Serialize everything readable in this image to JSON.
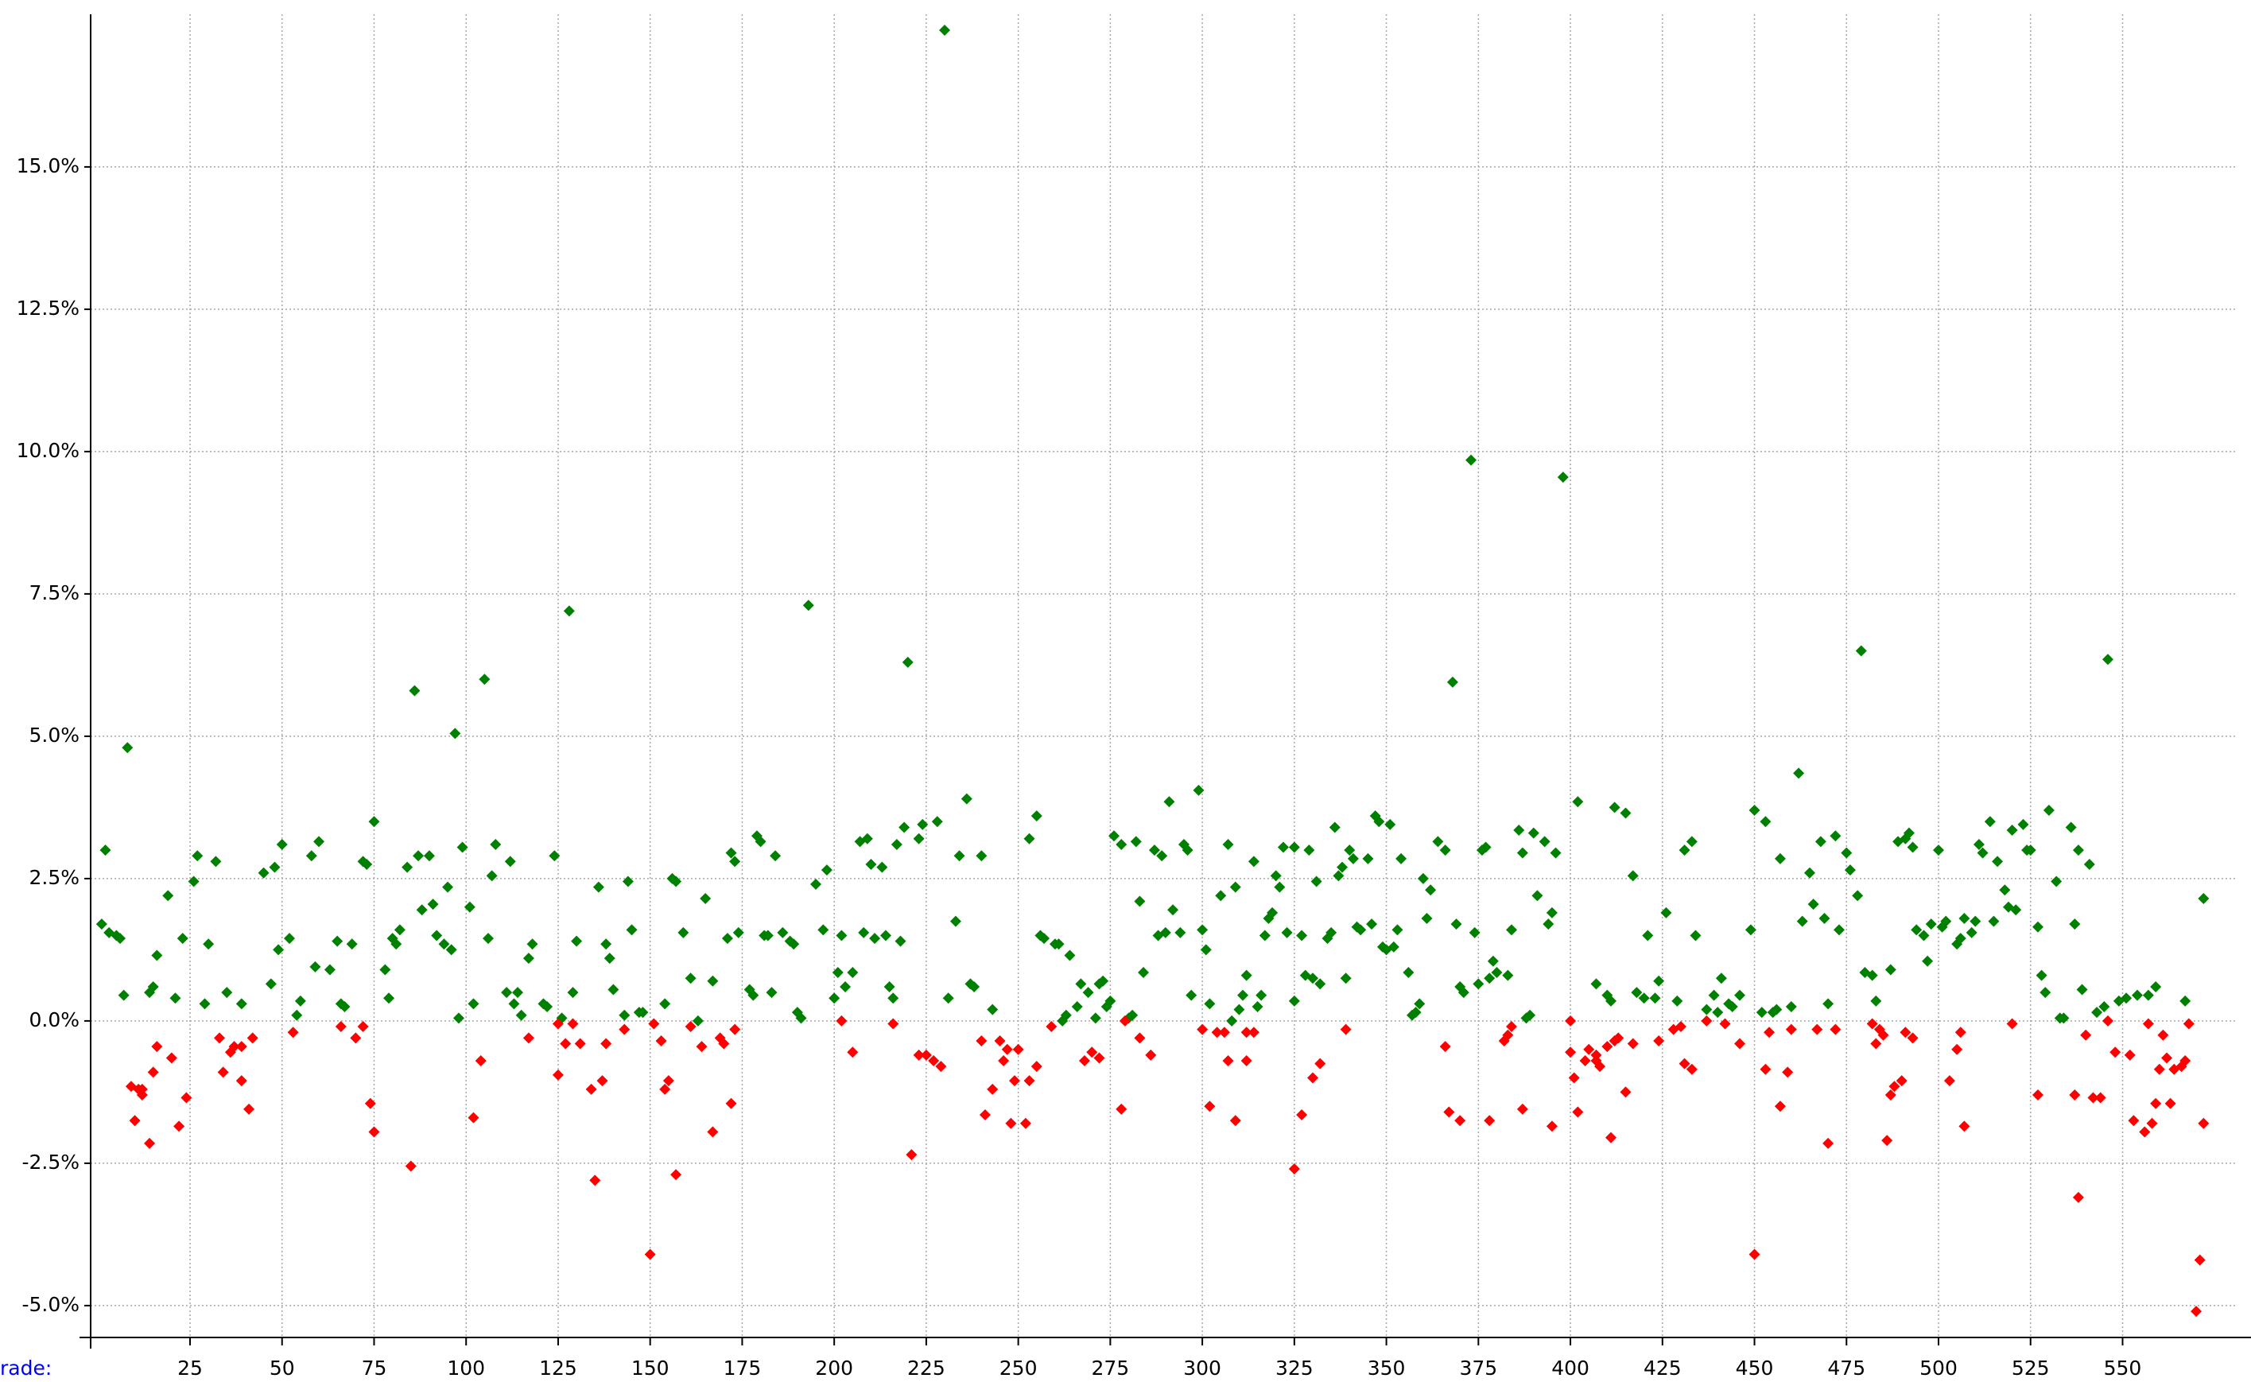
{
  "chart_data": {
    "type": "scatter",
    "x_label": "rade:",
    "xlim": [
      -2,
      581
    ],
    "ylim": [
      -5.56,
      17.68
    ],
    "xticks": [
      25,
      50,
      75,
      100,
      125,
      150,
      175,
      200,
      225,
      250,
      275,
      300,
      325,
      350,
      375,
      400,
      425,
      450,
      475,
      500,
      525,
      550
    ],
    "yticks": [
      {
        "value": -5,
        "label": "-5.0%"
      },
      {
        "value": -2.5,
        "label": "-2.5%"
      },
      {
        "value": 0,
        "label": "0.0%"
      },
      {
        "value": 2.5,
        "label": "2.5%"
      },
      {
        "value": 5,
        "label": "5.0%"
      },
      {
        "value": 7.5,
        "label": "7.5%"
      },
      {
        "value": 10,
        "label": "10.0%"
      },
      {
        "value": 12.5,
        "label": "12.5%"
      },
      {
        "value": 15,
        "label": "15.0%"
      }
    ],
    "grid": true,
    "series": [
      {
        "color": "#008000",
        "x": [
          1,
          2,
          3,
          5,
          6,
          7,
          8,
          14,
          15,
          16,
          19,
          21,
          23,
          26,
          27,
          29,
          30,
          32,
          35,
          39,
          45,
          47,
          48,
          49,
          50,
          52,
          54,
          55,
          58,
          59,
          60,
          63,
          65,
          66,
          67,
          69,
          72,
          73,
          75,
          78,
          79,
          80,
          81,
          82,
          84,
          86,
          87,
          88,
          90,
          91,
          92,
          94,
          95,
          96,
          97,
          98,
          99,
          101,
          102,
          105,
          106,
          107,
          108,
          111,
          112,
          113,
          114,
          115,
          117,
          118,
          121,
          122,
          124,
          126,
          128,
          129,
          130,
          136,
          138,
          139,
          140,
          143,
          144,
          145,
          147,
          148,
          154,
          156,
          157,
          159,
          161,
          163,
          165,
          167,
          171,
          172,
          173,
          174,
          177,
          178,
          179,
          180,
          181,
          182,
          183,
          184,
          186,
          188,
          189,
          190,
          191,
          195,
          193,
          197,
          198,
          200,
          201,
          202,
          203,
          205,
          207,
          208,
          209,
          210,
          211,
          213,
          214,
          215,
          216,
          217,
          218,
          219,
          220,
          223,
          224,
          228,
          230,
          231,
          233,
          234,
          236,
          237,
          238,
          240,
          243,
          253,
          255,
          256,
          257,
          260,
          261,
          262,
          263,
          264,
          266,
          267,
          269,
          271,
          272,
          273,
          274,
          275,
          276,
          278,
          280,
          281,
          282,
          283,
          284,
          287,
          288,
          289,
          290,
          291,
          292,
          294,
          295,
          296,
          297,
          299,
          300,
          301,
          302,
          305,
          307,
          308,
          309,
          310,
          311,
          312,
          314,
          315,
          316,
          317,
          318,
          319,
          320,
          321,
          322,
          325,
          323,
          325,
          327,
          328,
          329,
          330,
          331,
          332,
          334,
          335,
          336,
          337,
          338,
          339,
          340,
          341,
          342,
          343,
          345,
          346,
          347,
          348,
          349,
          350,
          351,
          352,
          353,
          354,
          356,
          357,
          358,
          359,
          360,
          361,
          362,
          364,
          366,
          368,
          369,
          370,
          371,
          373,
          374,
          375,
          376,
          377,
          378,
          379,
          380,
          383,
          384,
          386,
          387,
          388,
          389,
          390,
          391,
          393,
          394,
          395,
          396,
          398,
          402,
          407,
          410,
          411,
          412,
          415,
          417,
          418,
          420,
          421,
          423,
          424,
          426,
          429,
          431,
          433,
          434,
          437,
          439,
          440,
          441,
          443,
          444,
          446,
          449,
          450,
          452,
          453,
          455,
          456,
          457,
          460,
          462,
          463,
          465,
          466,
          468,
          469,
          470,
          472,
          473,
          475,
          476,
          478,
          479,
          480,
          482,
          483,
          487,
          489,
          491,
          492,
          493,
          494,
          496,
          497,
          498,
          500,
          501,
          502,
          505,
          506,
          507,
          509,
          510,
          511,
          512,
          514,
          515,
          516,
          518,
          519,
          520,
          521,
          523,
          524,
          525,
          527,
          528,
          529,
          530,
          532,
          533,
          534,
          536,
          537,
          538,
          539,
          541,
          543,
          545,
          546,
          549,
          551,
          554,
          557,
          559,
          567,
          572
        ],
        "values": [
          1.7,
          3.0,
          1.55,
          1.5,
          1.45,
          0.45,
          4.8,
          0.5,
          0.6,
          1.15,
          2.2,
          0.4,
          1.45,
          2.45,
          2.9,
          0.3,
          1.35,
          2.8,
          0.5,
          0.3,
          2.6,
          0.65,
          2.7,
          1.25,
          3.1,
          1.45,
          0.1,
          0.35,
          2.9,
          0.95,
          3.15,
          0.9,
          1.4,
          0.3,
          0.25,
          1.35,
          2.8,
          2.75,
          3.5,
          0.9,
          0.4,
          1.45,
          1.35,
          1.6,
          2.7,
          5.8,
          2.9,
          1.95,
          2.9,
          2.05,
          1.5,
          1.35,
          2.35,
          1.25,
          5.05,
          0.05,
          3.05,
          2.0,
          0.3,
          6.0,
          1.45,
          2.55,
          3.1,
          0.5,
          2.8,
          0.3,
          0.5,
          0.1,
          1.1,
          1.35,
          0.3,
          0.25,
          2.9,
          0.05,
          7.2,
          0.5,
          1.4,
          2.35,
          1.35,
          1.1,
          0.55,
          0.1,
          2.45,
          1.6,
          0.15,
          0.15,
          0.3,
          2.5,
          2.45,
          1.55,
          0.75,
          0.0,
          2.15,
          0.7,
          1.45,
          2.95,
          2.8,
          1.55,
          0.55,
          0.45,
          3.25,
          3.15,
          1.5,
          1.5,
          0.5,
          2.9,
          1.55,
          1.4,
          1.35,
          0.15,
          0.05,
          2.4,
          7.3,
          1.6,
          2.65,
          0.4,
          0.85,
          1.5,
          0.6,
          0.85,
          3.15,
          1.55,
          3.2,
          2.75,
          1.45,
          2.7,
          1.5,
          0.6,
          0.4,
          3.1,
          1.4,
          3.4,
          6.3,
          3.2,
          3.45,
          3.5,
          17.4,
          0.4,
          1.75,
          2.9,
          3.9,
          0.65,
          0.6,
          2.9,
          0.2,
          3.2,
          3.6,
          1.5,
          1.45,
          1.35,
          1.35,
          0.0,
          0.1,
          1.15,
          0.25,
          0.65,
          0.5,
          0.05,
          0.65,
          0.7,
          0.25,
          0.35,
          3.25,
          3.1,
          0.05,
          0.1,
          3.15,
          2.1,
          0.85,
          3.0,
          1.5,
          2.9,
          1.55,
          3.85,
          1.95,
          1.55,
          3.1,
          3.0,
          0.45,
          4.05,
          1.6,
          1.25,
          0.3,
          2.2,
          3.1,
          0.0,
          2.35,
          0.2,
          0.45,
          0.8,
          2.8,
          0.25,
          0.45,
          1.5,
          1.8,
          1.9,
          2.55,
          2.35,
          3.05,
          3.05,
          1.55,
          0.35,
          1.5,
          0.8,
          3.0,
          0.75,
          2.45,
          0.65,
          1.45,
          1.55,
          3.4,
          2.55,
          2.7,
          0.75,
          3.0,
          2.85,
          1.65,
          1.6,
          2.85,
          1.7,
          3.6,
          3.5,
          1.3,
          1.25,
          3.45,
          1.3,
          1.6,
          2.85,
          0.85,
          0.1,
          0.15,
          0.3,
          2.5,
          1.8,
          2.3,
          3.15,
          3.0,
          5.95,
          1.7,
          0.6,
          0.5,
          9.85,
          1.55,
          0.65,
          3.0,
          3.05,
          0.75,
          1.05,
          0.85,
          0.8,
          1.6,
          3.35,
          2.95,
          0.05,
          0.1,
          3.3,
          2.2,
          3.15,
          1.7,
          1.9,
          2.95,
          9.55,
          3.85,
          0.65,
          0.45,
          0.35,
          3.75,
          3.65,
          2.55,
          0.5,
          0.4,
          1.5,
          0.4,
          0.7,
          1.9,
          0.35,
          3.0,
          3.15,
          1.5,
          0.2,
          0.45,
          0.15,
          0.75,
          0.3,
          0.25,
          0.45,
          1.6,
          3.7,
          0.15,
          3.5,
          0.15,
          0.2,
          2.85,
          0.25,
          4.35,
          1.75,
          2.6,
          2.05,
          3.15,
          1.8,
          0.3,
          3.25,
          1.6,
          2.95,
          2.65,
          2.2,
          6.5,
          0.85,
          0.8,
          0.35,
          0.9,
          3.15,
          3.2,
          3.3,
          3.05,
          1.6,
          1.5,
          1.05,
          1.7,
          3.0,
          1.65,
          1.75,
          1.35,
          1.45,
          1.8,
          1.55,
          1.75,
          3.1,
          2.95,
          3.5,
          1.75,
          2.8,
          2.3,
          2.0,
          3.35,
          1.95,
          3.45,
          3.0,
          3.0,
          1.65,
          0.8,
          0.5,
          3.7,
          2.45,
          0.05,
          0.05,
          3.4,
          1.7,
          3.0,
          0.55,
          2.75,
          0.15,
          0.25,
          6.35,
          0.35,
          0.4,
          0.45,
          0.45,
          0.6,
          0.35,
          2.15
        ]
      },
      {
        "color": "#ff0000",
        "x": [
          9,
          10,
          11,
          12,
          12,
          14,
          15,
          16,
          20,
          22,
          24,
          33,
          34,
          36,
          37,
          39,
          39,
          41,
          42,
          53,
          66,
          70,
          72,
          74,
          75,
          85,
          102,
          104,
          117,
          125,
          125,
          127,
          129,
          131,
          134,
          135,
          137,
          138,
          143,
          150,
          151,
          153,
          154,
          155,
          157,
          161,
          164,
          167,
          169,
          170,
          172,
          173,
          202,
          205,
          216,
          221,
          223,
          225,
          227,
          229,
          240,
          241,
          243,
          245,
          246,
          247,
          248,
          249,
          250,
          252,
          253,
          255,
          259,
          268,
          270,
          272,
          278,
          279,
          283,
          286,
          300,
          302,
          304,
          306,
          307,
          309,
          312,
          312,
          314,
          325,
          327,
          330,
          332,
          339,
          366,
          367,
          370,
          378,
          382,
          383,
          384,
          387,
          395,
          400,
          400,
          401,
          402,
          404,
          405,
          407,
          407,
          408,
          410,
          411,
          412,
          413,
          415,
          417,
          424,
          428,
          430,
          431,
          433,
          437,
          442,
          446,
          450,
          453,
          454,
          457,
          459,
          460,
          467,
          470,
          472,
          482,
          483,
          484,
          485,
          486,
          487,
          488,
          490,
          491,
          493,
          503,
          505,
          506,
          507,
          520,
          527,
          537,
          538,
          540,
          542,
          544,
          546,
          548,
          552,
          553,
          556,
          557,
          558,
          559,
          560,
          561,
          562,
          563,
          564,
          566,
          567,
          568,
          570,
          571,
          572
        ],
        "values": [
          -1.15,
          -1.75,
          -1.2,
          -1.3,
          -1.2,
          -2.15,
          -0.9,
          -0.45,
          -0.65,
          -1.85,
          -1.35,
          -0.3,
          -0.9,
          -0.55,
          -0.45,
          -0.45,
          -1.05,
          -1.55,
          -0.3,
          -0.2,
          -0.1,
          -0.3,
          -0.1,
          -1.45,
          -1.95,
          -2.55,
          -1.7,
          -0.7,
          -0.3,
          -0.05,
          -0.95,
          -0.4,
          -0.05,
          -0.4,
          -1.2,
          -2.8,
          -1.05,
          -0.4,
          -0.15,
          -4.1,
          -0.05,
          -0.35,
          -1.2,
          -1.05,
          -2.7,
          -0.1,
          -0.45,
          -1.95,
          -0.3,
          -0.4,
          -1.45,
          -0.15,
          0,
          -0.55,
          -0.05,
          -2.35,
          -0.6,
          -0.6,
          -0.7,
          -0.8,
          -0.35,
          -1.65,
          -1.2,
          -0.35,
          -0.7,
          -0.5,
          -1.8,
          -1.05,
          -0.5,
          -1.8,
          -1.05,
          -0.8,
          -0.1,
          -0.7,
          -0.55,
          -0.65,
          -1.55,
          0,
          -0.3,
          -0.6,
          -0.15,
          -1.5,
          -0.2,
          -0.2,
          -0.7,
          -1.75,
          -0.7,
          -0.2,
          -0.2,
          -2.6,
          -1.65,
          -1.0,
          -0.75,
          -0.15,
          -0.45,
          -1.6,
          -1.75,
          -1.75,
          -0.35,
          -0.25,
          -0.1,
          -1.55,
          -1.85,
          0,
          -0.55,
          -1.0,
          -1.6,
          -0.7,
          -0.5,
          -0.6,
          -0.7,
          -0.8,
          -0.45,
          -2.05,
          -0.35,
          -0.3,
          -1.25,
          -0.4,
          -0.35,
          -0.15,
          -0.1,
          -0.75,
          -0.85,
          0,
          -0.05,
          -0.4,
          -4.1,
          -0.85,
          -0.2,
          -1.5,
          -0.9,
          -0.15,
          -0.15,
          -2.15,
          -0.15,
          -0.05,
          -0.4,
          -0.15,
          -0.25,
          -2.1,
          -1.3,
          -1.15,
          -1.05,
          -0.2,
          -0.3,
          -1.05,
          -0.5,
          -0.2,
          -1.85,
          -0.05,
          -1.3,
          -1.3,
          -3.1,
          -0.25,
          -1.35,
          -1.35,
          0,
          -0.55,
          -0.6,
          -1.75,
          -1.95,
          -0.05,
          -1.8,
          -1.45,
          -0.85,
          -0.25,
          -0.65,
          -1.45,
          -0.85,
          -0.8,
          -0.7,
          -0.05,
          -5.1,
          -4.2,
          -1.8
        ]
      }
    ]
  }
}
